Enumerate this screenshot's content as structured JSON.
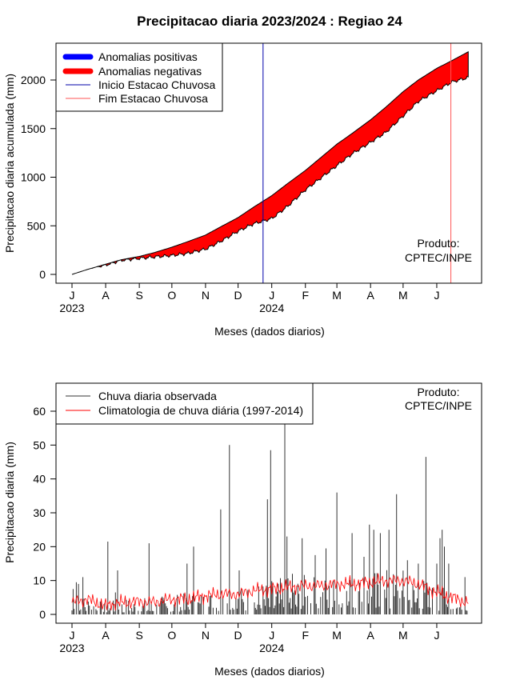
{
  "chart_data": [
    {
      "type": "area",
      "title": "Precipitacao diaria 2023/2024 : Regiao 24",
      "xlabel": "Meses (dados diarios)",
      "ylabel": "Precipitacao diaria acumulada (mm)",
      "ylim": [
        0,
        2300
      ],
      "yticks": [
        "0",
        "500",
        "1000",
        "1500",
        "2000"
      ],
      "month_labels": [
        "J",
        "A",
        "S",
        "O",
        "N",
        "D",
        "J",
        "F",
        "M",
        "A",
        "M",
        "J"
      ],
      "month_starts": [
        "2023-07-01",
        "2023-08-01",
        "2023-09-01",
        "2023-10-01",
        "2023-11-01",
        "2023-12-01",
        "2024-01-01",
        "2024-02-01",
        "2024-03-01",
        "2024-04-01",
        "2024-05-01",
        "2024-06-01"
      ],
      "year_labels": [
        {
          "text": "2023",
          "date": "2023-07-01"
        },
        {
          "text": "2024",
          "date": "2024-01-01"
        }
      ],
      "legend": [
        "Anomalias positivas",
        "Anomalias negativas",
        "Inicio Estacao Chuvosa",
        "Fim Estacao Chuvosa"
      ],
      "legend_position": "top-left",
      "colors": {
        "positive": "#0000ff",
        "negative": "#ff0000",
        "onset": "#0000aa",
        "end": "#ff5555"
      },
      "dates": [
        "2023-07-01",
        "2023-07-15",
        "2023-08-01",
        "2023-08-15",
        "2023-09-01",
        "2023-09-15",
        "2023-10-01",
        "2023-10-15",
        "2023-11-01",
        "2023-11-15",
        "2023-12-01",
        "2023-12-15",
        "2024-01-01",
        "2024-01-15",
        "2024-02-01",
        "2024-02-15",
        "2024-03-01",
        "2024-03-15",
        "2024-04-01",
        "2024-04-15",
        "2024-05-01",
        "2024-05-15",
        "2024-06-01",
        "2024-06-15",
        "2024-06-30"
      ],
      "series": [
        {
          "name": "climatology_accumulated",
          "values": [
            0,
            50,
            105,
            150,
            185,
            225,
            280,
            335,
            405,
            490,
            585,
            690,
            810,
            930,
            1070,
            1200,
            1340,
            1450,
            1590,
            1720,
            1880,
            2000,
            2120,
            2200,
            2290
          ]
        },
        {
          "name": "observed_accumulated",
          "values": [
            0,
            60,
            95,
            145,
            165,
            180,
            195,
            215,
            260,
            340,
            445,
            520,
            575,
            695,
            870,
            990,
            1120,
            1240,
            1360,
            1460,
            1630,
            1780,
            1890,
            1980,
            2025
          ]
        }
      ],
      "onset_date": "2023-12-24",
      "end_date": "2024-06-14",
      "credit": [
        "Produto:",
        "CPTEC/INPE"
      ]
    },
    {
      "type": "bar",
      "xlabel": "Meses (dados diarios)",
      "ylabel": "Precipitacao diaria (mm)",
      "ylim": [
        0,
        65
      ],
      "yticks": [
        "0",
        "10",
        "20",
        "30",
        "40",
        "50",
        "60"
      ],
      "month_labels": [
        "J",
        "A",
        "S",
        "O",
        "N",
        "D",
        "J",
        "F",
        "M",
        "A",
        "M",
        "J"
      ],
      "month_starts": [
        "2023-07-01",
        "2023-08-01",
        "2023-09-01",
        "2023-10-01",
        "2023-11-01",
        "2023-12-01",
        "2024-01-01",
        "2024-02-01",
        "2024-03-01",
        "2024-04-01",
        "2024-05-01",
        "2024-06-01"
      ],
      "year_labels": [
        {
          "text": "2023",
          "date": "2023-07-01"
        },
        {
          "text": "2024",
          "date": "2024-01-01"
        }
      ],
      "legend": [
        "Chuva diaria observada",
        "Climatologia de chuva diária (1997-2014)"
      ],
      "legend_position": "top-left",
      "colors": {
        "observed": "#333333",
        "climatology": "#ff0000"
      },
      "observed_peaks": [
        {
          "date": "2023-07-02",
          "value": 7.5
        },
        {
          "date": "2023-07-05",
          "value": 9.5
        },
        {
          "date": "2023-07-07",
          "value": 9
        },
        {
          "date": "2023-07-11",
          "value": 11
        },
        {
          "date": "2023-08-03",
          "value": 21.5
        },
        {
          "date": "2023-08-12",
          "value": 13
        },
        {
          "date": "2023-08-10",
          "value": 6.5
        },
        {
          "date": "2023-09-10",
          "value": 21
        },
        {
          "date": "2023-10-15",
          "value": 15
        },
        {
          "date": "2023-10-21",
          "value": 20
        },
        {
          "date": "2023-11-15",
          "value": 31
        },
        {
          "date": "2023-11-23",
          "value": 50
        },
        {
          "date": "2023-12-02",
          "value": 13
        },
        {
          "date": "2023-12-28",
          "value": 34
        },
        {
          "date": "2023-12-31",
          "value": 48.5
        },
        {
          "date": "2024-01-13",
          "value": 57
        },
        {
          "date": "2024-01-15",
          "value": 23
        },
        {
          "date": "2024-01-20",
          "value": 12
        },
        {
          "date": "2024-01-29",
          "value": 22.5
        },
        {
          "date": "2024-02-10",
          "value": 17.5
        },
        {
          "date": "2024-02-20",
          "value": 19.5
        },
        {
          "date": "2024-03-01",
          "value": 36
        },
        {
          "date": "2024-03-15",
          "value": 24
        },
        {
          "date": "2024-03-26",
          "value": 17
        },
        {
          "date": "2024-03-31",
          "value": 26.5
        },
        {
          "date": "2024-04-04",
          "value": 25
        },
        {
          "date": "2024-04-10",
          "value": 24
        },
        {
          "date": "2024-04-18",
          "value": 25
        },
        {
          "date": "2024-04-25",
          "value": 35.5
        },
        {
          "date": "2024-05-05",
          "value": 16
        },
        {
          "date": "2024-05-15",
          "value": 15
        },
        {
          "date": "2024-05-22",
          "value": 46.5
        },
        {
          "date": "2024-06-01",
          "value": 15
        },
        {
          "date": "2024-06-04",
          "value": 22.5
        },
        {
          "date": "2024-06-06",
          "value": 25
        },
        {
          "date": "2024-06-08",
          "value": 20
        },
        {
          "date": "2024-06-12",
          "value": 15
        },
        {
          "date": "2024-06-27",
          "value": 11
        }
      ],
      "climatology": {
        "dates": [
          "2023-07-01",
          "2023-07-15",
          "2023-08-01",
          "2023-08-15",
          "2023-09-01",
          "2023-09-15",
          "2023-10-01",
          "2023-10-15",
          "2023-11-01",
          "2023-11-15",
          "2023-12-01",
          "2023-12-15",
          "2024-01-01",
          "2024-01-15",
          "2024-02-01",
          "2024-02-15",
          "2024-03-01",
          "2024-03-15",
          "2024-04-01",
          "2024-04-15",
          "2024-05-01",
          "2024-05-15",
          "2024-06-01",
          "2024-06-15",
          "2024-06-30"
        ],
        "values": [
          3.5,
          4.5,
          2.5,
          3.5,
          3.8,
          3.6,
          4.5,
          4.5,
          5.5,
          6,
          6,
          7,
          7.5,
          8,
          8.5,
          8.5,
          9,
          9,
          9.5,
          10,
          10,
          9,
          6.5,
          5,
          3.5
        ]
      },
      "credit": [
        "Produto:",
        "CPTEC/INPE"
      ]
    }
  ]
}
